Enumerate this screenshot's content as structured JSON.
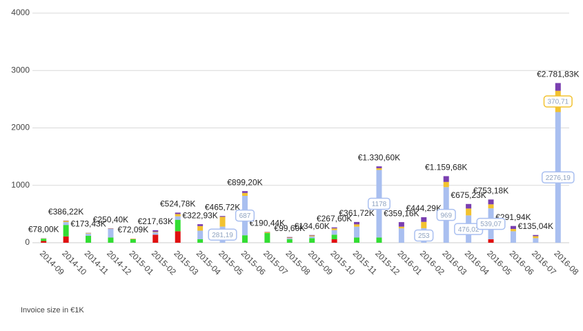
{
  "chart_data": {
    "type": "stacked-bar",
    "categories": [
      "2014-09",
      "2014-10",
      "2014-11",
      "2014-12",
      "2015-01",
      "2015-02",
      "2015-03",
      "2015-04",
      "2015-05",
      "2015-06",
      "2015-07",
      "2015-08",
      "2015-09",
      "2015-10",
      "2015-11",
      "2015-12",
      "2016-01",
      "2016-02",
      "2016-03",
      "2016-04",
      "2016-05",
      "2016-06",
      "2016-07",
      "2016-08"
    ],
    "series": [
      {
        "color": "#e01010",
        "values": [
          30,
          110,
          0,
          0,
          0,
          140,
          200,
          0,
          0,
          0,
          0,
          0,
          0,
          60,
          0,
          0,
          0,
          0,
          0,
          0,
          60,
          0,
          0,
          0
        ]
      },
      {
        "color": "#33dd33",
        "values": [
          40,
          200,
          120,
          90,
          60,
          0,
          200,
          60,
          0,
          130,
          170,
          60,
          80,
          80,
          90,
          90,
          0,
          0,
          0,
          0,
          0,
          0,
          0,
          0
        ]
      },
      {
        "color": "#a9bff0",
        "values": [
          0,
          50,
          40,
          150,
          0,
          40,
          60,
          150,
          281.19,
          687,
          0,
          20,
          30,
          80,
          190,
          1178,
          250,
          253,
          969,
          476.02,
          539.07,
          200,
          80,
          2276.19
        ],
        "value_labels": [
          null,
          null,
          null,
          null,
          null,
          null,
          null,
          null,
          "281,19",
          "687",
          null,
          null,
          null,
          null,
          null,
          "1178",
          null,
          "253",
          "969",
          "476,02",
          "539,07",
          null,
          null,
          "2276,19"
        ]
      },
      {
        "color": "#f2c230",
        "values": [
          5,
          20,
          10,
          5,
          10,
          10,
          40,
          80,
          170,
          50,
          15,
          10,
          15,
          30,
          40,
          30,
          30,
          110,
          90,
          120,
          70,
          40,
          35,
          370.71
        ],
        "value_labels": [
          null,
          null,
          null,
          null,
          null,
          null,
          null,
          null,
          null,
          null,
          null,
          null,
          null,
          null,
          null,
          null,
          null,
          null,
          null,
          null,
          null,
          null,
          null,
          "370,71"
        ]
      },
      {
        "color": "#7a3fb0",
        "values": [
          3,
          6.22,
          3.43,
          5.4,
          2.09,
          27.63,
          24.78,
          32.93,
          14.53,
          32.2,
          5.44,
          9.6,
          9.6,
          17.6,
          41.72,
          32.6,
          79.16,
          81.29,
          100.68,
          79.21,
          84.11,
          51.94,
          20.04,
          134.93
        ]
      }
    ],
    "totals": {
      "values": [
        78,
        386.22,
        173.43,
        250.4,
        72.09,
        217.63,
        524.78,
        322.93,
        465.72,
        899.2,
        190.44,
        99.6,
        134.6,
        267.6,
        361.72,
        1330.6,
        359.16,
        444.29,
        1159.68,
        675.23,
        753.18,
        291.94,
        135.04,
        2781.83
      ],
      "value_labels": [
        "€78,00K",
        "€386,22K",
        "€173,43K",
        "€250,40K",
        "€72,09K",
        "€217,63K",
        "€524,78K",
        "€322,93K",
        "€465,72K",
        "€899,20K",
        "€190,44K",
        "€99,60K",
        "€134,60K",
        "€267,60K",
        "€361,72K",
        "€1.330,60K",
        "€359,16K",
        "€444,29K",
        "€1.159,68K",
        "€675,23K",
        "€753,18K",
        "€291,94K",
        "€135,04K",
        "€2.781,83K"
      ]
    },
    "ylim": [
      0,
      4000
    ],
    "yticks": [
      0,
      1000,
      2000,
      3000,
      4000
    ],
    "grid": true,
    "footnote": "Invoice size in  €1K"
  }
}
